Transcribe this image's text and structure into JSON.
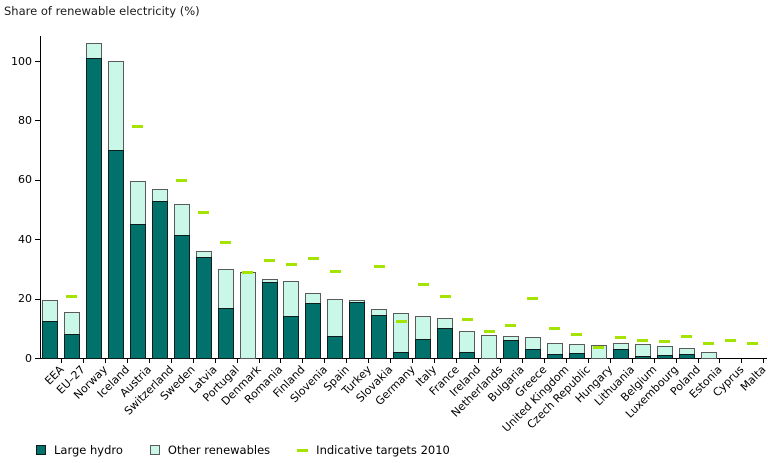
{
  "chart_data": {
    "type": "bar",
    "stacked": true,
    "title": "Share of renewable electricity (%)",
    "ylim": [
      0,
      108
    ],
    "yticks": [
      0,
      20,
      40,
      60,
      80,
      100
    ],
    "grid": false,
    "legend_position": "bottom-left",
    "categories": [
      "EEA",
      "EU–27",
      "Norway",
      "Iceland",
      "Austria",
      "Switzerland",
      "Sweden",
      "Latvia",
      "Portugal",
      "Denmark",
      "Romania",
      "Finland",
      "Slovenia",
      "Spain",
      "Turkey",
      "Slovakia",
      "Germany",
      "Italy",
      "France",
      "Ireland",
      "Netherlands",
      "Bulgaria",
      "Greece",
      "United Kingdom",
      "Czech Republic",
      "Hungary",
      "Lithuania",
      "Belgium",
      "Luxembourg",
      "Poland",
      "Estonia",
      "Cyprus",
      "Malta"
    ],
    "series": [
      {
        "name": "Large hydro",
        "color": "#00726b",
        "values": [
          12.5,
          8,
          101,
          70,
          45,
          53,
          41.5,
          34,
          17,
          0,
          25.5,
          14,
          18.5,
          7.5,
          18.7,
          14.5,
          2,
          6.5,
          10,
          2,
          0,
          6,
          3,
          1.2,
          1.7,
          0,
          2.9,
          0.8,
          1,
          1.2,
          0,
          0,
          0
        ]
      },
      {
        "name": "Other renewables",
        "color": "#c9f7e8",
        "values": [
          7,
          7.5,
          5,
          30,
          14.5,
          4,
          10.5,
          2,
          13,
          29,
          1,
          12,
          3.5,
          12.5,
          0.7,
          2,
          13,
          7.5,
          3.5,
          7,
          7.8,
          1.5,
          4,
          3.7,
          2.9,
          4.4,
          2.2,
          3.9,
          3.1,
          2.2,
          2,
          0,
          0
        ]
      }
    ],
    "targets": {
      "name": "Indicative targets 2010",
      "color": "#a4e400",
      "values": [
        null,
        21,
        null,
        null,
        78.1,
        null,
        60,
        49.3,
        39,
        29,
        33,
        31.5,
        33.6,
        29.4,
        null,
        31,
        12.5,
        25,
        21,
        13.2,
        9,
        11,
        20.1,
        10,
        8,
        3.6,
        7,
        6,
        5.7,
        7.5,
        5.1,
        6,
        5
      ]
    }
  }
}
